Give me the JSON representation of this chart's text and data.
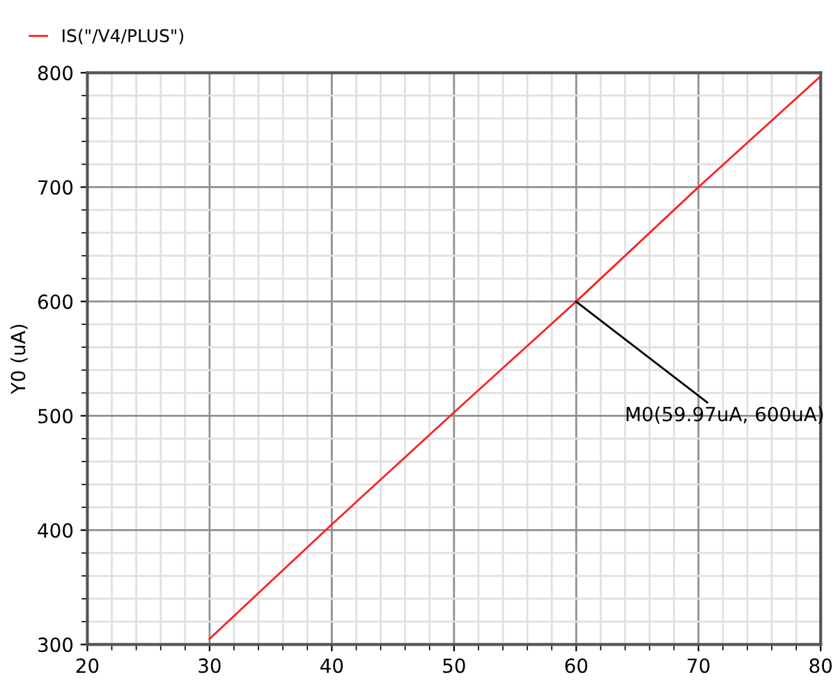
{
  "chart_data": {
    "type": "line",
    "ylabel": "Y0 (uA)",
    "x": [
      30,
      40,
      50,
      60,
      70,
      80
    ],
    "series": [
      {
        "name": "IS(\"/V4/PLUS\")",
        "color": "#ff2020",
        "values": [
          305,
          405,
          503,
          600,
          700,
          797
        ]
      }
    ],
    "xlim": [
      20,
      80
    ],
    "xticks": [
      20,
      30,
      40,
      50,
      60,
      70,
      80
    ],
    "ylim": [
      300,
      800
    ],
    "yticks": [
      300,
      400,
      500,
      600,
      700,
      800
    ],
    "grid": true,
    "legend": "top left",
    "marker": "none",
    "line_style": "solid",
    "annotations": [
      {
        "text": "M0(59.97uA, 600uA)",
        "x": 59.97,
        "y": 600
      }
    ]
  }
}
